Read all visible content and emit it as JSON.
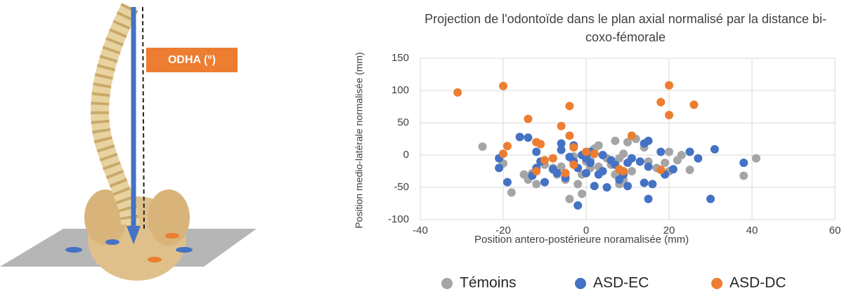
{
  "illustration": {
    "label": "ODHA (°)"
  },
  "chart_data": {
    "type": "scatter",
    "title": "Projection de l'odontoïde dans le plan axial normalisé par la distance bi-coxo-fémorale",
    "x_label": "Position antero-postérieure noramalisée (mm)",
    "y_label": "Position medio-latérale normalisée (mm)",
    "xlim": [
      -40,
      60
    ],
    "xticks": [
      -40,
      -20,
      0,
      20,
      40,
      60
    ],
    "ylim": [
      -100,
      150
    ],
    "yticks": [
      -100,
      -50,
      0,
      50,
      100,
      150
    ],
    "grid": true,
    "legend": "bottom",
    "series": [
      {
        "name": "Témoins",
        "color": "#a5a5a5",
        "x": [
          -25,
          -20,
          -18,
          -15,
          -14,
          -13,
          -12,
          -10,
          -8,
          -7,
          -5,
          -4,
          -3,
          -2,
          -1,
          -1,
          0,
          1,
          2,
          3,
          3,
          5,
          6,
          7,
          7,
          8,
          8,
          9,
          10,
          11,
          12,
          14,
          15,
          17,
          19,
          20,
          20,
          22,
          23,
          25,
          38,
          41,
          1,
          -6,
          9
        ],
        "values": [
          13,
          -13,
          -58,
          -30,
          -38,
          -28,
          -45,
          -15,
          -20,
          -30,
          -38,
          -68,
          -2,
          -45,
          -60,
          -30,
          -10,
          -20,
          10,
          15,
          -18,
          -5,
          -15,
          22,
          -30,
          -45,
          -5,
          -38,
          20,
          -25,
          25,
          12,
          -10,
          -20,
          -12,
          5,
          -25,
          -8,
          0,
          -23,
          -32,
          -5,
          -8,
          -18,
          2
        ]
      },
      {
        "name": "ASD-EC",
        "color": "#4472c4",
        "x": [
          -21,
          -21,
          -19,
          -16,
          -14,
          -13,
          -12,
          -12,
          -11,
          -10,
          -8,
          -7,
          -6,
          -6,
          -5,
          -4,
          -3,
          -2,
          -2,
          -1,
          0,
          0,
          1,
          2,
          3,
          4,
          5,
          6,
          7,
          8,
          9,
          10,
          10,
          11,
          13,
          14,
          14,
          15,
          15,
          15,
          16,
          18,
          19,
          21,
          25,
          27,
          30,
          31,
          38,
          -3,
          1,
          4
        ],
        "values": [
          -5,
          -20,
          -42,
          28,
          27,
          -32,
          5,
          -20,
          -10,
          -42,
          -22,
          -28,
          8,
          18,
          -35,
          -3,
          -10,
          -78,
          -20,
          0,
          -28,
          -5,
          -12,
          -48,
          -30,
          0,
          -50,
          -8,
          -15,
          -38,
          -30,
          -48,
          -12,
          -5,
          -10,
          18,
          -43,
          22,
          -18,
          -68,
          -45,
          5,
          -30,
          -22,
          5,
          -5,
          -68,
          9,
          -12,
          15,
          5,
          -25
        ]
      },
      {
        "name": "ASD-DC",
        "color": "#ed7d31",
        "x": [
          -31,
          -20,
          -20,
          -19,
          -14,
          -12,
          -12,
          -11,
          -10,
          -6,
          -5,
          -4,
          -4,
          -3,
          -3,
          0,
          8,
          9,
          11,
          18,
          20,
          20,
          18,
          26,
          2,
          -8
        ],
        "values": [
          97,
          107,
          2,
          14,
          56,
          20,
          -25,
          17,
          -8,
          45,
          -28,
          76,
          30,
          -15,
          12,
          5,
          -22,
          -25,
          30,
          82,
          62,
          108,
          -23,
          78,
          2,
          -5
        ]
      }
    ]
  }
}
